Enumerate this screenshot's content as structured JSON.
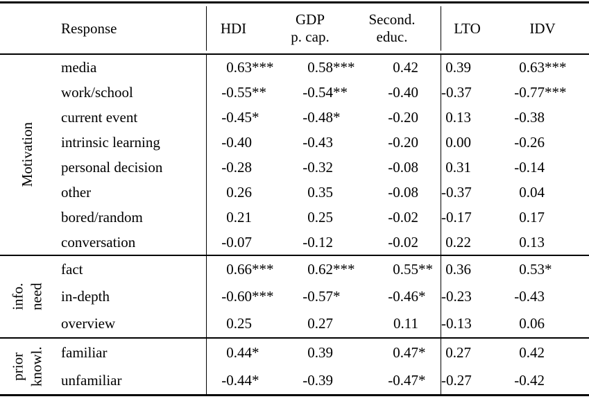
{
  "header": {
    "response": "Response",
    "hdi": "HDI",
    "gdp_line1": "GDP",
    "gdp_line2": "p. cap.",
    "sec_line1": "Second.",
    "sec_line2": "educ.",
    "lto": "LTO",
    "idv": "IDV"
  },
  "colors": {
    "text": "#000000",
    "background": "#ffffff",
    "rule": "#000000"
  },
  "chart_data": {
    "type": "table",
    "columns": [
      "Response",
      "HDI",
      "GDP p. cap.",
      "Second. educ.",
      "LTO",
      "IDV"
    ],
    "sections": [
      {
        "group": [
          "Motivation"
        ],
        "rows": [
          {
            "label": "media",
            "v": [
              {
                "n": "0.63",
                "s": "***"
              },
              {
                "n": "0.58",
                "s": "***"
              },
              {
                "n": "0.42",
                "s": ""
              },
              {
                "n": "0.39",
                "s": ""
              },
              {
                "n": "0.63",
                "s": "***"
              }
            ]
          },
          {
            "label": "work/school",
            "v": [
              {
                "n": "-0.55",
                "s": "**"
              },
              {
                "n": "-0.54",
                "s": "**"
              },
              {
                "n": "-0.40",
                "s": ""
              },
              {
                "n": "-0.37",
                "s": ""
              },
              {
                "n": "-0.77",
                "s": "***"
              }
            ]
          },
          {
            "label": "current event",
            "v": [
              {
                "n": "-0.45",
                "s": "*"
              },
              {
                "n": "-0.48",
                "s": "*"
              },
              {
                "n": "-0.20",
                "s": ""
              },
              {
                "n": "0.13",
                "s": ""
              },
              {
                "n": "-0.38",
                "s": ""
              }
            ]
          },
          {
            "label": "intrinsic learning",
            "v": [
              {
                "n": "-0.40",
                "s": ""
              },
              {
                "n": "-0.43",
                "s": ""
              },
              {
                "n": "-0.20",
                "s": ""
              },
              {
                "n": "0.00",
                "s": ""
              },
              {
                "n": "-0.26",
                "s": ""
              }
            ]
          },
          {
            "label": "personal decision",
            "v": [
              {
                "n": "-0.28",
                "s": ""
              },
              {
                "n": "-0.32",
                "s": ""
              },
              {
                "n": "-0.08",
                "s": ""
              },
              {
                "n": "0.31",
                "s": ""
              },
              {
                "n": "-0.14",
                "s": ""
              }
            ]
          },
          {
            "label": "other",
            "v": [
              {
                "n": "0.26",
                "s": ""
              },
              {
                "n": "0.35",
                "s": ""
              },
              {
                "n": "-0.08",
                "s": ""
              },
              {
                "n": "-0.37",
                "s": ""
              },
              {
                "n": "0.04",
                "s": ""
              }
            ]
          },
          {
            "label": "bored/random",
            "v": [
              {
                "n": "0.21",
                "s": ""
              },
              {
                "n": "0.25",
                "s": ""
              },
              {
                "n": "-0.02",
                "s": ""
              },
              {
                "n": "-0.17",
                "s": ""
              },
              {
                "n": "0.17",
                "s": ""
              }
            ]
          },
          {
            "label": "conversation",
            "v": [
              {
                "n": "-0.07",
                "s": ""
              },
              {
                "n": "-0.12",
                "s": ""
              },
              {
                "n": "-0.02",
                "s": ""
              },
              {
                "n": "0.22",
                "s": ""
              },
              {
                "n": "0.13",
                "s": ""
              }
            ]
          }
        ]
      },
      {
        "group": [
          "info.",
          "need"
        ],
        "rows": [
          {
            "label": "fact",
            "v": [
              {
                "n": "0.66",
                "s": "***"
              },
              {
                "n": "0.62",
                "s": "***"
              },
              {
                "n": "0.55",
                "s": "**"
              },
              {
                "n": "0.36",
                "s": ""
              },
              {
                "n": "0.53",
                "s": "*"
              }
            ]
          },
          {
            "label": "in-depth",
            "v": [
              {
                "n": "-0.60",
                "s": "***"
              },
              {
                "n": "-0.57",
                "s": "*"
              },
              {
                "n": "-0.46",
                "s": "*"
              },
              {
                "n": "-0.23",
                "s": ""
              },
              {
                "n": "-0.43",
                "s": ""
              }
            ]
          },
          {
            "label": "overview",
            "v": [
              {
                "n": "0.25",
                "s": ""
              },
              {
                "n": "0.27",
                "s": ""
              },
              {
                "n": "0.11",
                "s": ""
              },
              {
                "n": "-0.13",
                "s": ""
              },
              {
                "n": "0.06",
                "s": ""
              }
            ]
          }
        ]
      },
      {
        "group": [
          "prior",
          "knowl."
        ],
        "rows": [
          {
            "label": "familiar",
            "v": [
              {
                "n": "0.44",
                "s": "*"
              },
              {
                "n": "0.39",
                "s": ""
              },
              {
                "n": "0.47",
                "s": "*"
              },
              {
                "n": "0.27",
                "s": ""
              },
              {
                "n": "0.42",
                "s": ""
              }
            ]
          },
          {
            "label": "unfamiliar",
            "v": [
              {
                "n": "-0.44",
                "s": "*"
              },
              {
                "n": "-0.39",
                "s": ""
              },
              {
                "n": "-0.47",
                "s": "*"
              },
              {
                "n": "-0.27",
                "s": ""
              },
              {
                "n": "-0.42",
                "s": ""
              }
            ]
          }
        ]
      }
    ]
  }
}
